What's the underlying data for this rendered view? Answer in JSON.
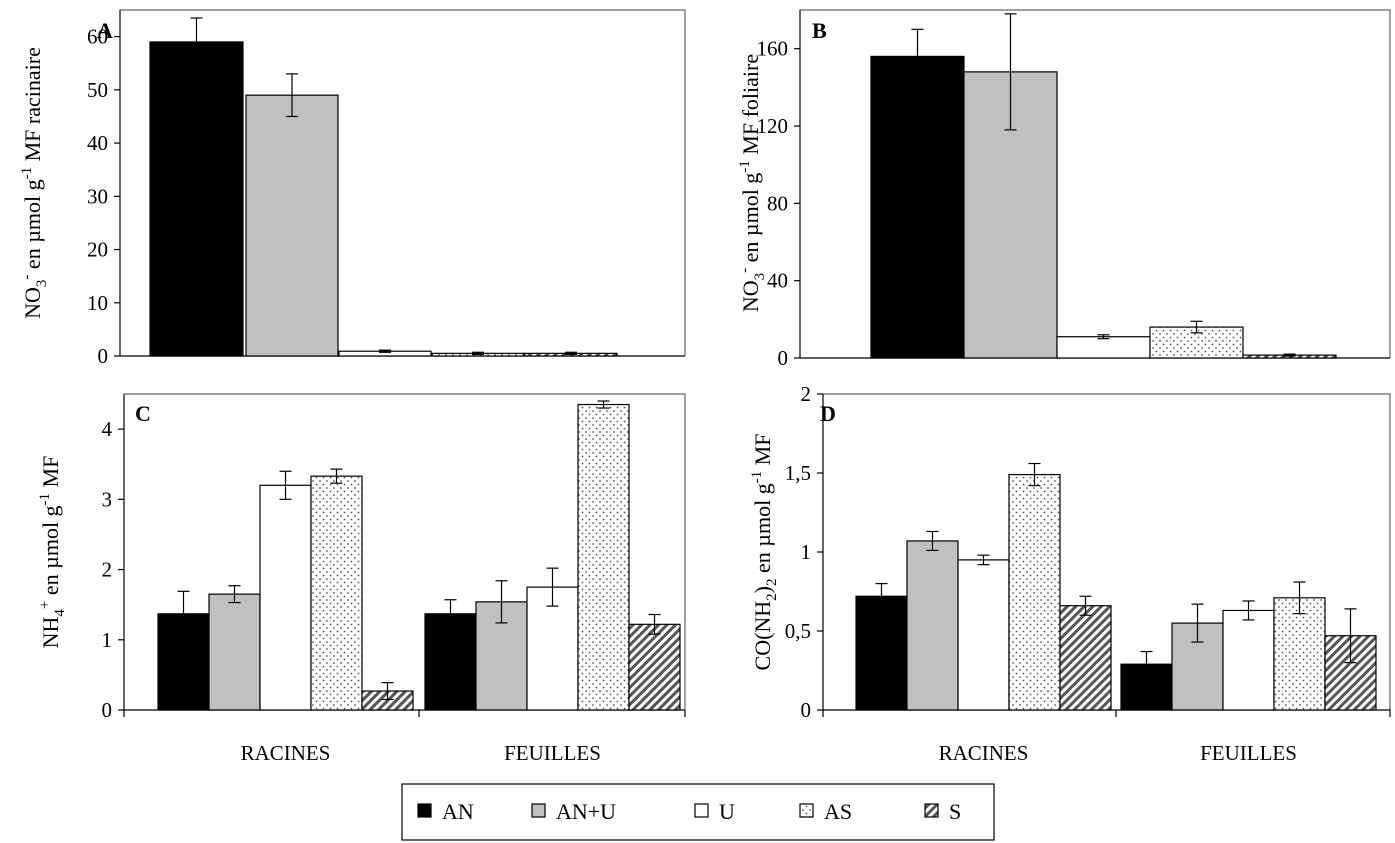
{
  "legend": [
    {
      "name": "AN",
      "key": "AN"
    },
    {
      "name": "AN+U",
      "key": "ANU"
    },
    {
      "name": "U",
      "key": "U"
    },
    {
      "name": "AS",
      "key": "AS"
    },
    {
      "name": "S",
      "key": "S"
    }
  ],
  "chart_data": [
    {
      "panel": "A",
      "type": "bar",
      "ylabel_parts": [
        "NO",
        "3",
        "-",
        " en µmol g",
        "-1",
        " MF racinaire"
      ],
      "ylim": [
        0,
        65
      ],
      "yticks": [
        0,
        10,
        20,
        30,
        40,
        50,
        60
      ],
      "ytick_labels": [
        "0",
        "10",
        "20",
        "30",
        "40",
        "50",
        "60"
      ],
      "series": [
        {
          "name": "AN",
          "values": [
            59
          ],
          "err": [
            4.5
          ]
        },
        {
          "name": "AN+U",
          "values": [
            49
          ],
          "err": [
            4
          ]
        },
        {
          "name": "U",
          "values": [
            0.9
          ],
          "err": [
            0.2
          ]
        },
        {
          "name": "AS",
          "values": [
            0.5
          ],
          "err": [
            0.2
          ]
        },
        {
          "name": "S",
          "values": [
            0.5
          ],
          "err": [
            0.2
          ]
        }
      ]
    },
    {
      "panel": "B",
      "type": "bar",
      "ylabel_parts": [
        "NO",
        "3",
        "-",
        " en µmol g",
        "-1",
        " MF foliaire"
      ],
      "ylim": [
        0,
        180
      ],
      "yticks": [
        0,
        40,
        80,
        120,
        160
      ],
      "ytick_labels": [
        "0",
        "40",
        "80",
        "120",
        "160"
      ],
      "series": [
        {
          "name": "AN",
          "values": [
            156
          ],
          "err": [
            14
          ]
        },
        {
          "name": "AN+U",
          "values": [
            148
          ],
          "err": [
            30
          ]
        },
        {
          "name": "U",
          "values": [
            11
          ],
          "err": [
            1
          ]
        },
        {
          "name": "AS",
          "values": [
            16
          ],
          "err": [
            3
          ]
        },
        {
          "name": "S",
          "values": [
            1.5
          ],
          "err": [
            0.5
          ]
        }
      ]
    },
    {
      "panel": "C",
      "type": "bar",
      "ylabel_parts": [
        "NH",
        "4",
        "+",
        " en µmol g",
        "-1",
        " MF"
      ],
      "categories": [
        "RACINES",
        "FEUILLES"
      ],
      "ylim": [
        0,
        4.5
      ],
      "yticks": [
        0,
        1,
        2,
        3,
        4
      ],
      "ytick_labels": [
        "0",
        "1",
        "2",
        "3",
        "4"
      ],
      "series": [
        {
          "name": "AN",
          "values": [
            1.37,
            1.37
          ],
          "err": [
            0.32,
            0.2
          ]
        },
        {
          "name": "AN+U",
          "values": [
            1.65,
            1.54
          ],
          "err": [
            0.12,
            0.3
          ]
        },
        {
          "name": "U",
          "values": [
            3.2,
            1.75
          ],
          "err": [
            0.2,
            0.27
          ]
        },
        {
          "name": "AS",
          "values": [
            3.33,
            4.35
          ],
          "err": [
            0.1,
            0.05
          ]
        },
        {
          "name": "S",
          "values": [
            0.27,
            1.22
          ],
          "err": [
            0.12,
            0.14
          ]
        }
      ]
    },
    {
      "panel": "D",
      "type": "bar",
      "ylabel_parts": [
        "CO(NH",
        "2",
        ")",
        "2",
        " en µmol g",
        "-1",
        " MF"
      ],
      "categories": [
        "RACINES",
        "FEUILLES"
      ],
      "ylim": [
        0,
        2
      ],
      "yticks": [
        0,
        0.5,
        1,
        1.5,
        2
      ],
      "ytick_labels": [
        "0",
        "0,5",
        "1",
        "1,5",
        "2"
      ],
      "series": [
        {
          "name": "AN",
          "values": [
            0.72,
            0.29
          ],
          "err": [
            0.08,
            0.08
          ]
        },
        {
          "name": "AN+U",
          "values": [
            1.07,
            0.55
          ],
          "err": [
            0.06,
            0.12
          ]
        },
        {
          "name": "U",
          "values": [
            0.95,
            0.63
          ],
          "err": [
            0.03,
            0.06
          ]
        },
        {
          "name": "AS",
          "values": [
            1.49,
            0.71
          ],
          "err": [
            0.07,
            0.1
          ]
        },
        {
          "name": "S",
          "values": [
            0.66,
            0.47
          ],
          "err": [
            0.06,
            0.17
          ]
        }
      ]
    }
  ]
}
